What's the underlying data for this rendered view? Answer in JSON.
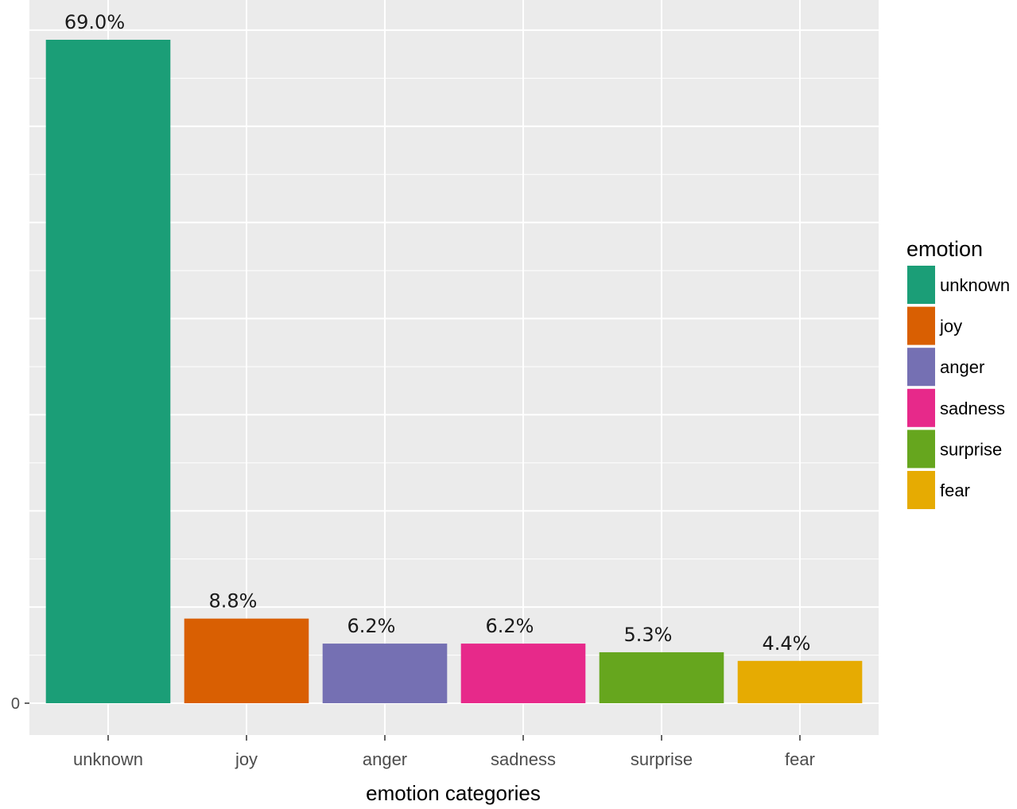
{
  "chart_data": {
    "type": "bar",
    "categories": [
      "unknown",
      "joy",
      "anger",
      "sadness",
      "surprise",
      "fear"
    ],
    "values": [
      69.0,
      8.8,
      6.2,
      6.2,
      5.3,
      4.4
    ],
    "data_labels": [
      "69.0%",
      "8.8%",
      "6.2%",
      "6.2%",
      "5.3%",
      "4.4%"
    ],
    "colors": [
      "#1b9e77",
      "#d95f02",
      "#7570b3",
      "#e7298a",
      "#66a61e",
      "#e6ab02"
    ],
    "title": "",
    "xlabel": "emotion categories",
    "ylabel": "",
    "y_ticks": [
      {
        "value": 0,
        "label": "0"
      }
    ],
    "ylim": [
      -3.4,
      73.5
    ],
    "grid": true,
    "legend": {
      "title": "emotion",
      "placement": "right",
      "entries": [
        "unknown",
        "joy",
        "anger",
        "sadness",
        "surprise",
        "fear"
      ]
    }
  }
}
